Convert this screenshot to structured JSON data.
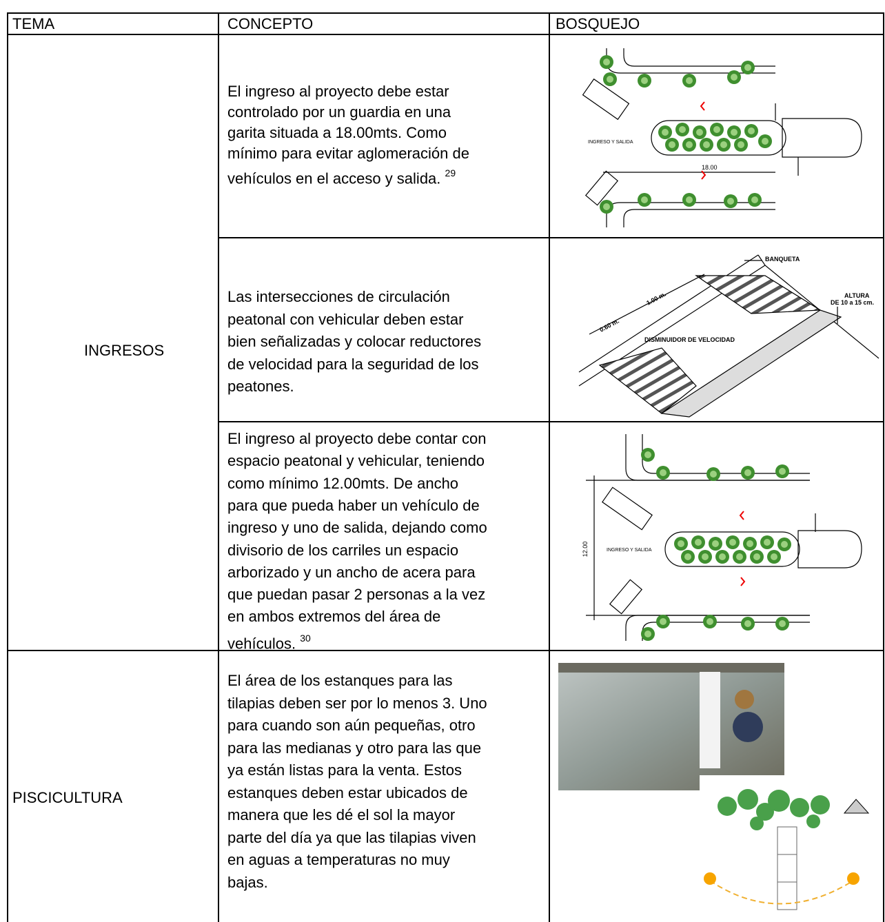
{
  "table": {
    "header": [
      "TEMA",
      "CONCEPTO",
      "BOSQUEJO"
    ],
    "rows": [
      {
        "tema": "INGRESOS",
        "items": [
          {
            "lines": [
              "El ingreso al proyecto debe estar",
              "controlado por un guardia en una",
              "garita situada a 18.00mts. Como",
              "mínimo para evitar aglomeración de",
              "vehículos en el acceso y salida."
            ],
            "footnote": "29",
            "sketch_labels": [
              "INGRESO Y SALIDA",
              "18.00"
            ]
          },
          {
            "lines": [
              "Las intersecciones de circulación",
              "peatonal con vehicular deben estar",
              "bien señalizadas y colocar reductores",
              "de velocidad para la seguridad de los",
              "peatones."
            ],
            "sketch_labels": [
              "BANQUETA",
              "1.00 m.",
              "0.60 m.",
              "ALTURA",
              "DE 10 a 15 cm.",
              "DISMINUIDOR DE VELOCIDAD"
            ]
          },
          {
            "lines": [
              "El ingreso al proyecto debe contar con",
              "espacio peatonal y vehicular, teniendo",
              "como mínimo 12.00mts. De ancho",
              "para que pueda haber un vehículo de",
              "ingreso y uno de salida, dejando como",
              "divisorio de los carriles un espacio",
              "arborizado y un ancho de acera para",
              "que puedan pasar 2 personas a la vez",
              "en ambos extremos del área de",
              "vehículos."
            ],
            "footnote": "30",
            "sketch_labels": [
              "12.00",
              "INGRESO Y SALIDA"
            ]
          }
        ]
      },
      {
        "tema": "PISCICULTURA",
        "items": [
          {
            "lines": [
              "El área de los estanques para las",
              "tilapias deben ser por lo menos 3. Uno",
              "para cuando son aún pequeñas, otro",
              "para las medianas y otro para las que",
              "ya están listas para la venta. Estos",
              "estanques deben estar ubicados de",
              "manera que les dé el sol la mayor",
              "parte del día ya que las tilapias viven",
              "en aguas a temperaturas no muy",
              "bajas."
            ]
          }
        ]
      }
    ]
  }
}
